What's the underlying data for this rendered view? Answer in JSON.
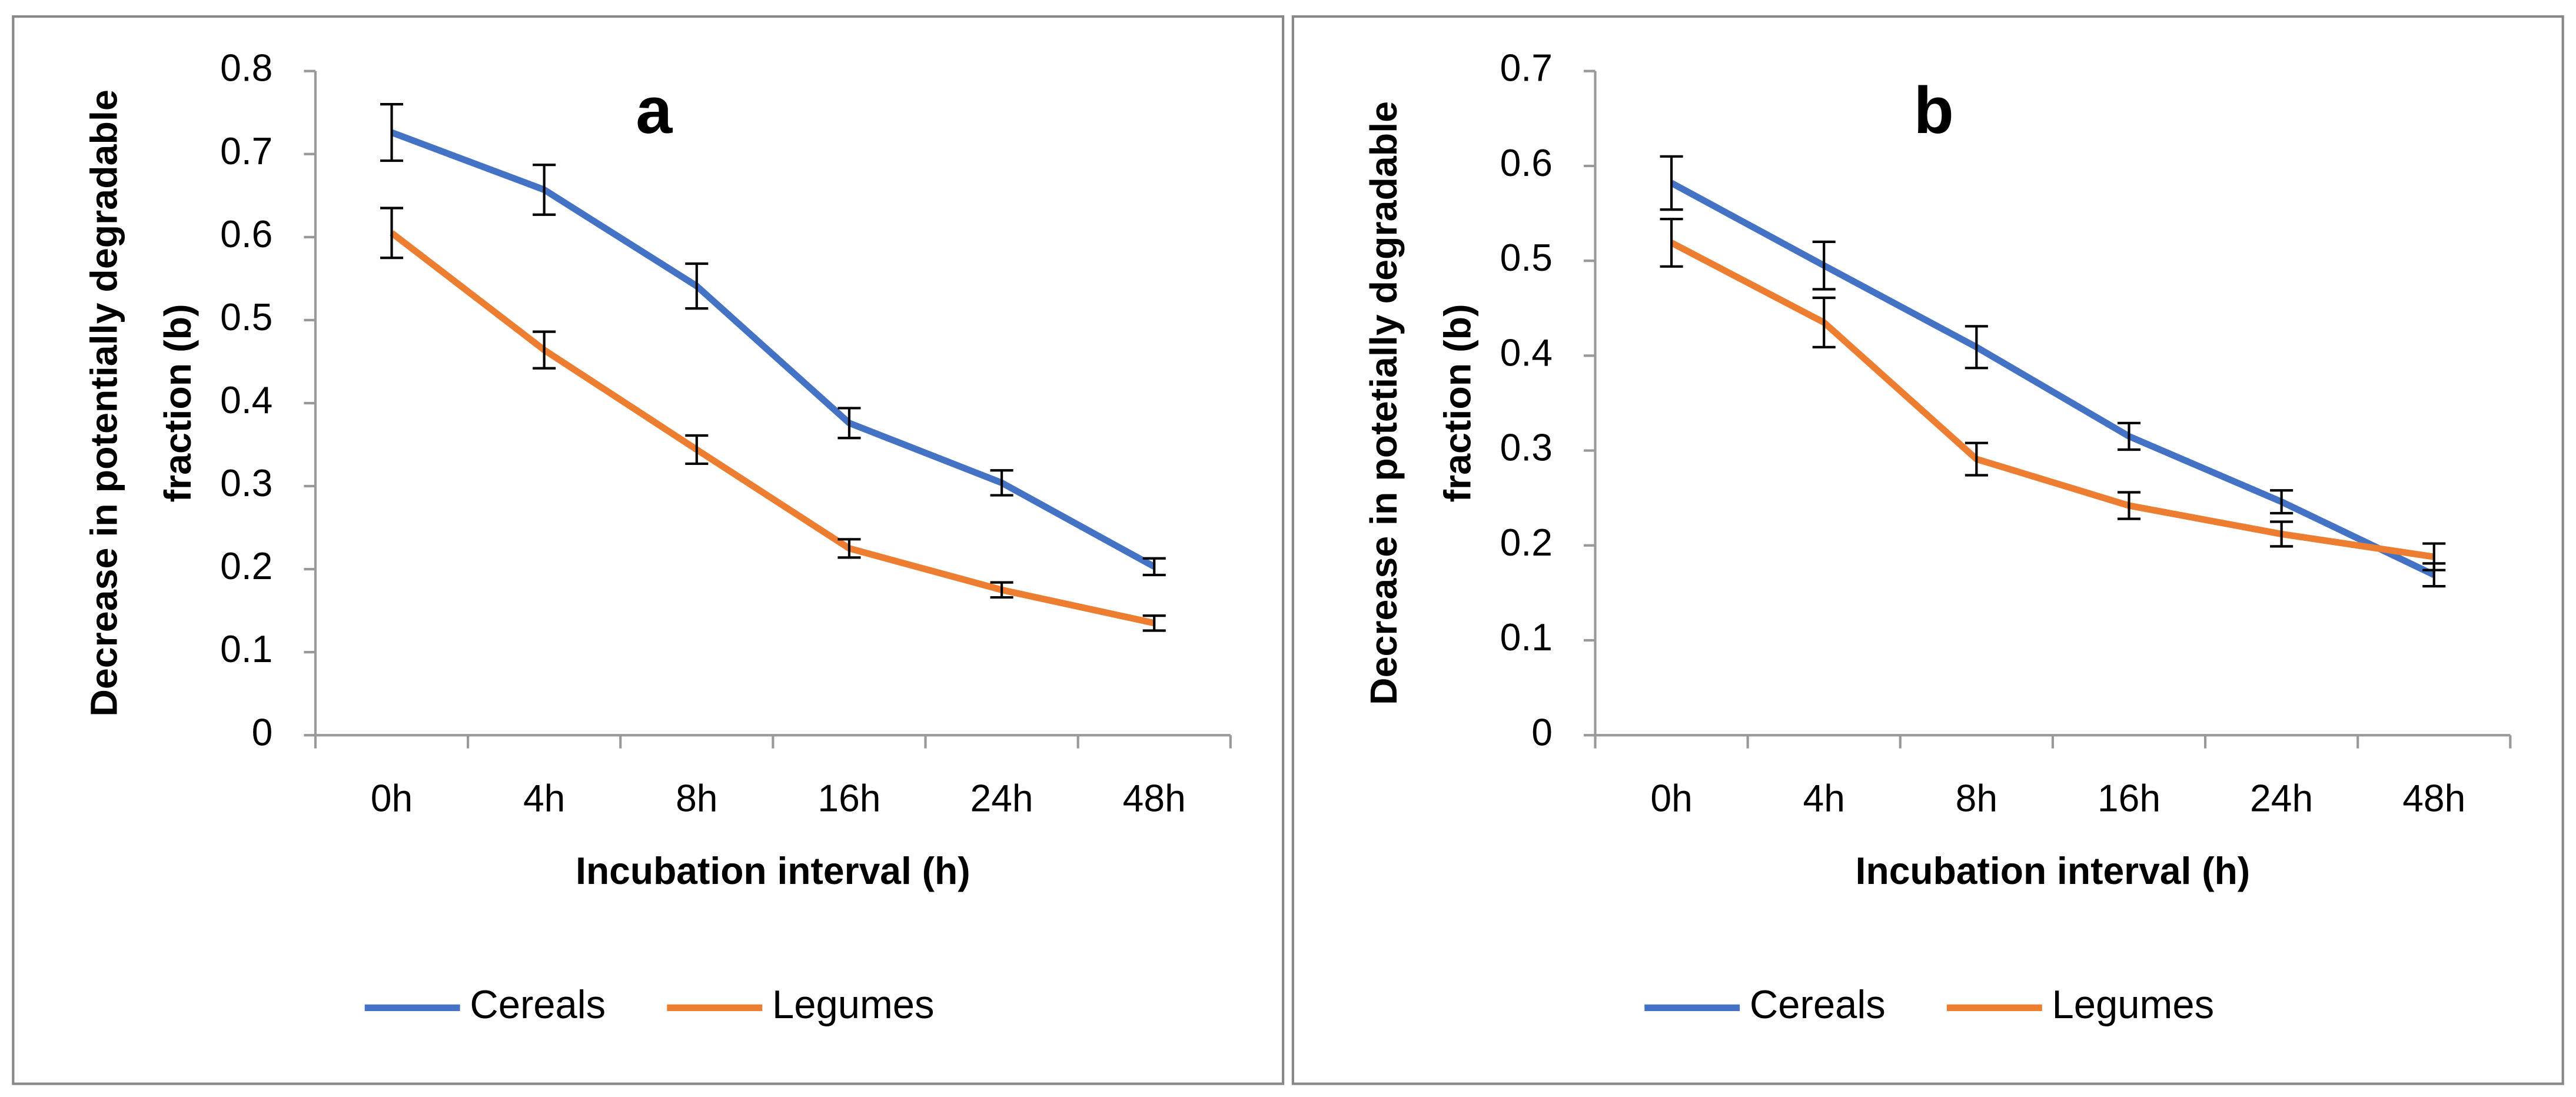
{
  "chart_data": [
    {
      "type": "line",
      "title": "a",
      "y_label": [
        "Decrease in potentially degradable",
        "fraction (b)"
      ],
      "x_label": "Incubation interval (h)",
      "categories": [
        "0h",
        "4h",
        "8h",
        "16h",
        "24h",
        "48h"
      ],
      "series": [
        {
          "name": "Cereals",
          "color": "#4472c4",
          "values": [
            0.726,
            0.657,
            0.541,
            0.376,
            0.304,
            0.203
          ],
          "errors": [
            0.034,
            0.03,
            0.027,
            0.018,
            0.015,
            0.01
          ]
        },
        {
          "name": "Legumes",
          "color": "#ed7d31",
          "values": [
            0.605,
            0.464,
            0.344,
            0.225,
            0.175,
            0.135
          ],
          "errors": [
            0.03,
            0.022,
            0.017,
            0.011,
            0.009,
            0.009
          ]
        }
      ],
      "ylim": [
        0,
        0.8
      ],
      "yticks": [
        0,
        0.1,
        0.2,
        0.3,
        0.4,
        0.5,
        0.6,
        0.7,
        0.8
      ],
      "grid": false,
      "legend": "bottom"
    },
    {
      "type": "line",
      "title": "b",
      "y_label": [
        "Decrease in potetially degradable",
        "fraction (b)"
      ],
      "x_label": "Incubation interval (h)",
      "categories": [
        "0h",
        "4h",
        "8h",
        "16h",
        "24h",
        "48h"
      ],
      "series": [
        {
          "name": "Cereals",
          "color": "#4472c4",
          "values": [
            0.582,
            0.495,
            0.409,
            0.315,
            0.246,
            0.169
          ],
          "errors": [
            0.028,
            0.025,
            0.022,
            0.014,
            0.012,
            0.012
          ]
        },
        {
          "name": "Legumes",
          "color": "#ed7d31",
          "values": [
            0.519,
            0.435,
            0.291,
            0.242,
            0.212,
            0.188
          ],
          "errors": [
            0.025,
            0.026,
            0.017,
            0.014,
            0.013,
            0.014
          ]
        }
      ],
      "ylim": [
        0,
        0.7
      ],
      "yticks": [
        0,
        0.1,
        0.2,
        0.3,
        0.4,
        0.5,
        0.6,
        0.7
      ],
      "grid": false,
      "legend": "bottom"
    }
  ]
}
